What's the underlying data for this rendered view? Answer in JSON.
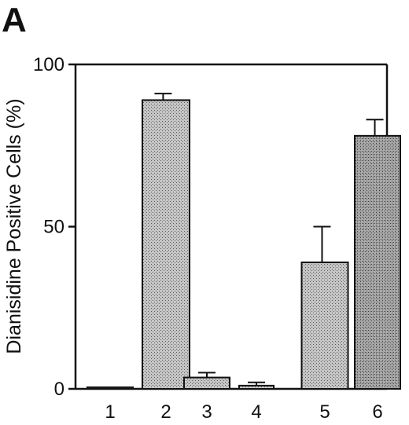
{
  "panel_label": "A",
  "colors": {
    "ink": "#111111",
    "bar_fill": "#c9c9c9",
    "background": "#ffffff"
  },
  "chart_data": {
    "type": "bar",
    "title": "",
    "xlabel": "",
    "ylabel": "Dianisidine Positive Cells (%)",
    "categories": [
      "1",
      "2",
      "3",
      "4",
      "5",
      "6"
    ],
    "values": [
      0.5,
      89,
      3.5,
      1,
      39,
      78
    ],
    "error_upper": [
      0.5,
      91,
      5,
      2,
      50,
      83
    ],
    "ylim": [
      0,
      100
    ],
    "yticks": [
      0,
      50,
      100
    ],
    "grid": false,
    "legend": "none"
  }
}
